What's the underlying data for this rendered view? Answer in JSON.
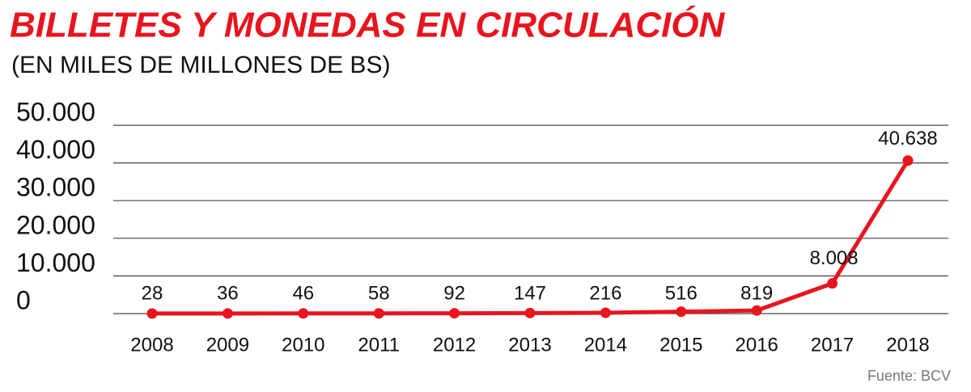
{
  "chart_data": {
    "type": "line",
    "title": "BILLETES Y MONEDAS EN CIRCULACIÓN",
    "subtitle": "(EN MILES DE MILLONES DE BS)",
    "source": "Fuente: BCV",
    "categories": [
      "2008",
      "2009",
      "2010",
      "2011",
      "2012",
      "2013",
      "2014",
      "2015",
      "2016",
      "2017",
      "2018"
    ],
    "values": [
      28,
      36,
      46,
      58,
      92,
      147,
      216,
      516,
      819,
      8008,
      40638
    ],
    "value_labels": [
      "28",
      "36",
      "46",
      "58",
      "92",
      "147",
      "216",
      "516",
      "819",
      "8.008",
      "40.638"
    ],
    "color": "#e8141e",
    "ylim": [
      0,
      50000
    ],
    "yticks": [
      0,
      {
        "value": 10000,
        "label": "10.000"
      },
      {
        "value": 20000,
        "label": "20.000"
      },
      {
        "value": 30000,
        "label": "30.000"
      },
      {
        "value": 40000,
        "label": "40.000"
      },
      {
        "value": 50000,
        "label": "50.000"
      }
    ],
    "grid": true
  }
}
